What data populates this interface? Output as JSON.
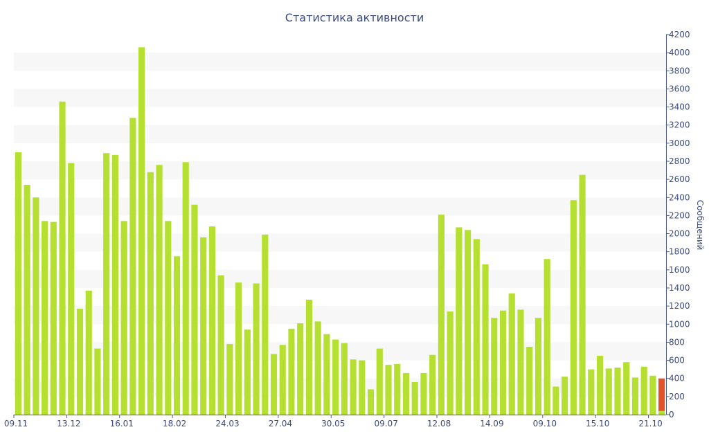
{
  "chart_data": {
    "type": "bar",
    "stacked": true,
    "title": "Статистика активности",
    "xlabel": "",
    "ylabel": "Сообщений",
    "y_axis_side": "right",
    "ylim": [
      0,
      4200
    ],
    "y_ticks": [
      0,
      200,
      400,
      600,
      800,
      1000,
      1200,
      1400,
      1600,
      1800,
      2000,
      2200,
      2400,
      2600,
      2800,
      3000,
      3200,
      3400,
      3600,
      3800,
      4000,
      4200
    ],
    "grid": "alternating horizontal bands",
    "x_tick_labels": [
      {
        "index": 0,
        "label": "09.11"
      },
      {
        "index": 6,
        "label": "13.12"
      },
      {
        "index": 12,
        "label": "16.01"
      },
      {
        "index": 18,
        "label": "18.02"
      },
      {
        "index": 24,
        "label": "24.03"
      },
      {
        "index": 30,
        "label": "27.04"
      },
      {
        "index": 36,
        "label": "30.05"
      },
      {
        "index": 42,
        "label": "09.07"
      },
      {
        "index": 48,
        "label": "12.08"
      },
      {
        "index": 54,
        "label": "14.09"
      },
      {
        "index": 60,
        "label": "09.10"
      },
      {
        "index": 66,
        "label": "15.10"
      },
      {
        "index": 72,
        "label": "21.10"
      }
    ],
    "colors": {
      "series1": "#b5e032",
      "series2": "#e0522a"
    },
    "series": [
      {
        "color": "#b5e032",
        "values": [
          2900,
          2540,
          2400,
          2140,
          2130,
          3460,
          2780,
          1170,
          1370,
          730,
          2890,
          2870,
          2140,
          3280,
          4060,
          2680,
          2760,
          2140,
          1750,
          2790,
          2320,
          1960,
          2080,
          1540,
          780,
          1460,
          940,
          1450,
          1990,
          670,
          770,
          950,
          1010,
          1270,
          1030,
          890,
          830,
          790,
          610,
          600,
          280,
          730,
          550,
          560,
          460,
          360,
          460,
          660,
          2210,
          1140,
          2070,
          2040,
          1940,
          1660,
          1070,
          1150,
          1340,
          1160,
          750,
          1070,
          1720,
          310,
          420,
          2370,
          2650,
          500,
          650,
          510,
          520,
          580,
          410,
          530,
          430,
          40
        ]
      },
      {
        "color": "#e0522a",
        "values": [
          0,
          0,
          0,
          0,
          0,
          0,
          0,
          0,
          0,
          0,
          0,
          0,
          0,
          0,
          0,
          0,
          0,
          0,
          0,
          0,
          0,
          0,
          0,
          0,
          0,
          0,
          0,
          0,
          0,
          0,
          0,
          0,
          0,
          0,
          0,
          0,
          0,
          0,
          0,
          0,
          0,
          0,
          0,
          0,
          0,
          0,
          0,
          0,
          0,
          0,
          0,
          0,
          0,
          0,
          0,
          0,
          0,
          0,
          0,
          0,
          0,
          0,
          0,
          0,
          0,
          0,
          0,
          0,
          0,
          0,
          0,
          0,
          0,
          360
        ]
      }
    ]
  }
}
